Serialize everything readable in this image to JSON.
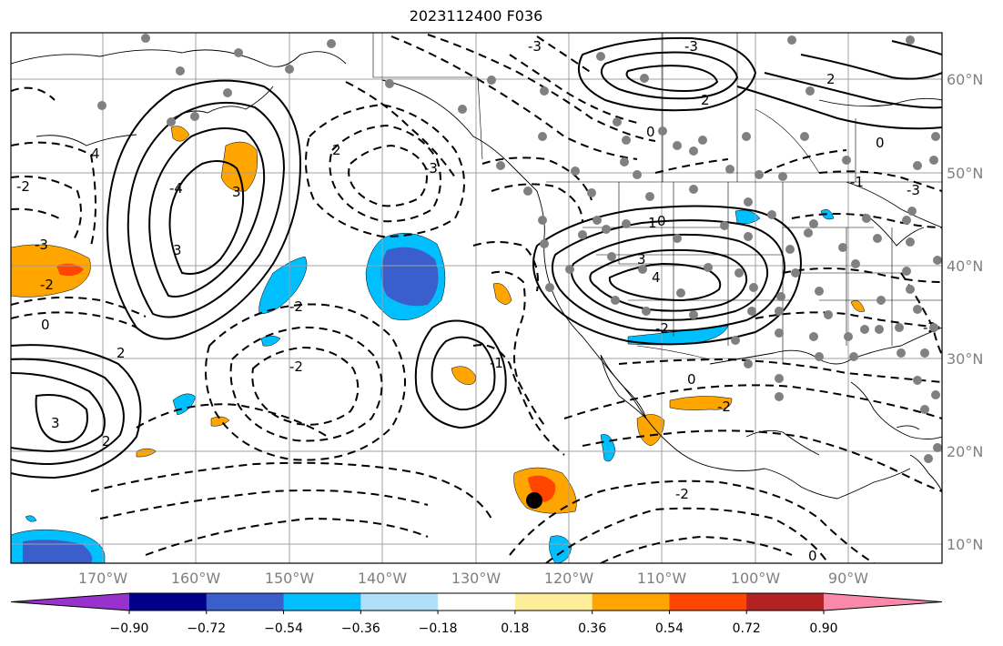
{
  "title": "2023112400 F036",
  "map": {
    "lon_ticks": [
      {
        "value": -170,
        "label": "170°W"
      },
      {
        "value": -160,
        "label": "160°W"
      },
      {
        "value": -150,
        "label": "150°W"
      },
      {
        "value": -140,
        "label": "140°W"
      },
      {
        "value": -130,
        "label": "130°W"
      },
      {
        "value": -120,
        "label": "120°W"
      },
      {
        "value": -110,
        "label": "110°W"
      },
      {
        "value": -100,
        "label": "100°W"
      },
      {
        "value": -90,
        "label": "90°W"
      }
    ],
    "lat_ticks": [
      {
        "value": 60,
        "label": "60°N"
      },
      {
        "value": 50,
        "label": "50°N"
      },
      {
        "value": 40,
        "label": "40°N"
      },
      {
        "value": 30,
        "label": "30°N"
      },
      {
        "value": 20,
        "label": "20°N"
      },
      {
        "value": 10,
        "label": "10°N"
      }
    ],
    "lon_range": [
      -180,
      -80
    ],
    "lat_range": [
      8,
      65
    ],
    "contour_labels": [
      "-3",
      "-2",
      "-2",
      "0",
      "2",
      "2",
      "-2",
      "-2",
      "-3",
      "-1",
      "2",
      "-4",
      "3",
      "-3",
      "0",
      "2",
      "2",
      "0",
      "4",
      "3",
      "1",
      "0",
      "-2",
      "-1",
      "0",
      "-2",
      "-2",
      "0",
      "-3",
      "-3",
      "3",
      "3",
      "4",
      "-2"
    ],
    "colorbar": {
      "colors": [
        "#9932CC",
        "#00008B",
        "#3A5FCD",
        "#00BFFF",
        "#B0E0F8",
        "#FFFFFF",
        "#FFEE99",
        "#FFA500",
        "#FF4500",
        "#B22222",
        "#F988AA"
      ],
      "ticks": [
        "−0.90",
        "−0.72",
        "−0.54",
        "−0.36",
        "−0.18",
        "0.18",
        "0.36",
        "0.54",
        "0.72",
        "0.90"
      ]
    }
  }
}
